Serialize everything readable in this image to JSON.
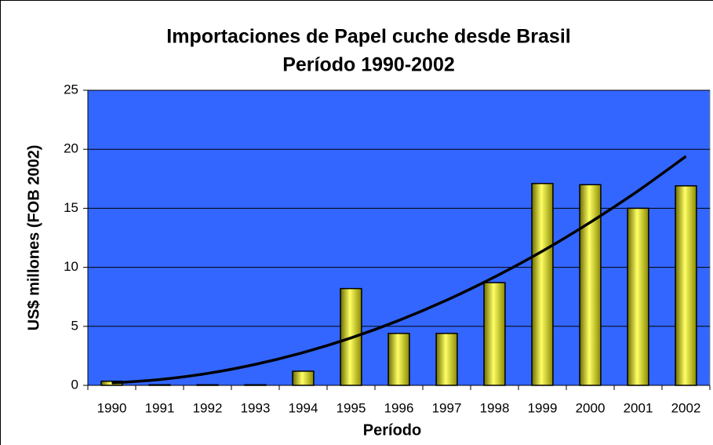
{
  "chart_data": {
    "type": "bar",
    "title": "Importaciones de Papel cuche desde Brasil",
    "subtitle": "Período 1990-2002",
    "x_label": "Período",
    "y_label": "US$ millones (FOB 2002)",
    "categories": [
      "1990",
      "1991",
      "1992",
      "1993",
      "1994",
      "1995",
      "1996",
      "1997",
      "1998",
      "1999",
      "2000",
      "2001",
      "2002"
    ],
    "values": [
      0.35,
      0.05,
      0.05,
      0.05,
      1.2,
      8.2,
      4.4,
      4.4,
      8.7,
      17.1,
      17.0,
      15.0,
      16.9
    ],
    "color": "#ffff00",
    "trendline": {
      "color": "#000000",
      "values": [
        0.2,
        0.49,
        1.01,
        1.78,
        2.78,
        4.02,
        5.5,
        7.22,
        9.18,
        11.37,
        13.81,
        16.48,
        19.4
      ]
    },
    "plot_background": "#3366ff",
    "ylim": [
      0,
      25
    ],
    "yticks": [
      0,
      5,
      10,
      15,
      20,
      25
    ],
    "grid": true
  }
}
